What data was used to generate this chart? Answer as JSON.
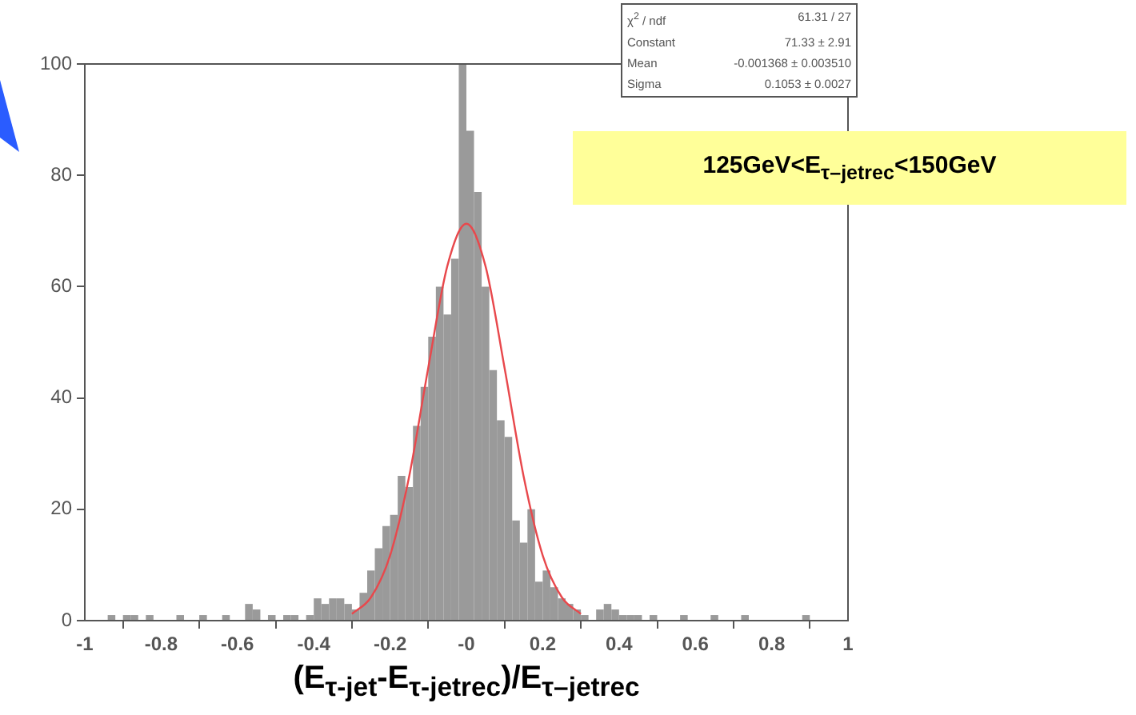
{
  "chart_data": {
    "type": "histogram",
    "xlabel": "(E$_{τ-jet}$-E$_{τ-jetrec}$)/E$_{τ–jetrec}$",
    "color": "#9a9a9a",
    "bins": [
      -1,
      -0.98,
      -0.96,
      -0.94,
      -0.92,
      -0.9,
      -0.88,
      -0.86,
      -0.84,
      -0.82,
      -0.8,
      -0.78,
      -0.76,
      -0.74,
      -0.72,
      -0.7,
      -0.68,
      -0.66,
      -0.64,
      -0.62,
      -0.6,
      -0.58,
      -0.56,
      -0.54,
      -0.52,
      -0.5,
      -0.48,
      -0.46,
      -0.44,
      -0.42,
      -0.4,
      -0.38,
      -0.36,
      -0.34,
      -0.32,
      -0.3,
      -0.28,
      -0.26,
      -0.24,
      -0.22,
      -0.2,
      -0.18,
      -0.16,
      -0.14,
      -0.12,
      -0.1,
      -0.08,
      -0.06,
      -0.04,
      -0.02,
      0,
      0.02,
      0.04,
      0.06,
      0.08,
      0.1,
      0.12,
      0.14,
      0.16,
      0.18,
      0.2,
      0.22,
      0.24,
      0.26,
      0.28,
      0.3,
      0.32,
      0.34,
      0.36,
      0.38,
      0.4,
      0.42,
      0.44,
      0.46,
      0.48,
      0.5,
      0.52,
      0.54,
      0.56,
      0.58,
      0.6,
      0.62,
      0.64,
      0.66,
      0.68,
      0.7,
      0.72,
      0.74,
      0.76,
      0.78,
      0.8,
      0.82,
      0.84,
      0.86,
      0.88,
      0.9,
      0.92,
      0.94,
      0.96,
      0.98,
      1
    ],
    "values": [
      0,
      0,
      0,
      1,
      0,
      1,
      1,
      0,
      1,
      0,
      0,
      0,
      1,
      0,
      0,
      1,
      0,
      0,
      1,
      0,
      0,
      3,
      2,
      0,
      1,
      0,
      1,
      1,
      0,
      1,
      4,
      3,
      4,
      4,
      3,
      2,
      5,
      9,
      13,
      17,
      19,
      26,
      24,
      35,
      42,
      51,
      60,
      55,
      65,
      100,
      88,
      77,
      60,
      45,
      36,
      33,
      18,
      14,
      20,
      7,
      9,
      6,
      4,
      3,
      2,
      1,
      0,
      2,
      3,
      2,
      1,
      1,
      1,
      0,
      1,
      0,
      0,
      0,
      1,
      0,
      0,
      0,
      1,
      0,
      0,
      0,
      1,
      0,
      0,
      0,
      0,
      0,
      0,
      0,
      1,
      0,
      0,
      0,
      0,
      0
    ],
    "series": [
      {
        "type": "line",
        "color": "#e8484c",
        "x": [
          -0.3,
          -0.25,
          -0.2,
          -0.15,
          -0.1,
          -0.05,
          0,
          0.05,
          0.1,
          0.15,
          0.2,
          0.25,
          0.3
        ],
        "values": [
          1.2,
          4.2,
          11.7,
          25.9,
          45.4,
          63.7,
          71.3,
          63.7,
          45.4,
          25.9,
          11.7,
          4.2,
          1.2
        ]
      }
    ],
    "xlim": [
      -1,
      1
    ],
    "xticks": [
      -1,
      -0.8,
      -0.6,
      -0.4,
      -0.2,
      {
        "value": 0,
        "label": "-0"
      },
      0.2,
      0.4,
      0.6,
      0.8,
      1
    ],
    "ylim": [
      0,
      100
    ],
    "yticks": [
      0,
      20,
      40,
      60,
      80,
      100
    ],
    "grid": false,
    "legend": false,
    "annotations": [
      "χ$^{2}$ / ndf 61.31 / 27",
      "Constant 71.33 ± 2.91",
      "Mean -0.001368 ± 0.003510",
      "Sigma 0.1053 ± 0.0027",
      "125GeV<E$_{τ–jetrec}$<150GeV"
    ]
  }
}
